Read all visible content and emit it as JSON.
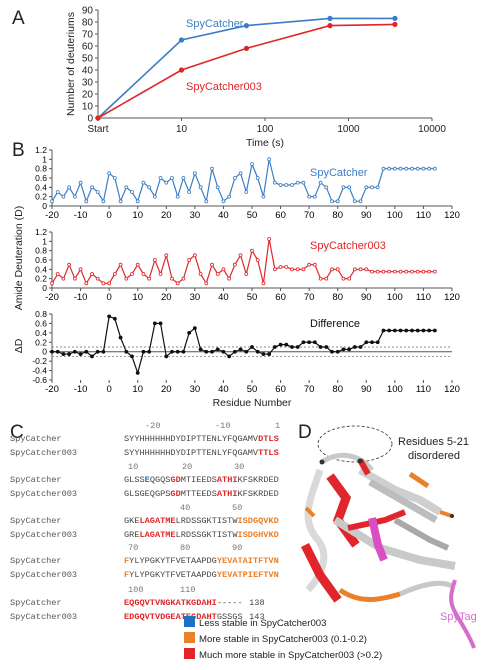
{
  "panels": {
    "a": "A",
    "b": "B",
    "c": "C",
    "d": "D"
  },
  "colors": {
    "spycatcher": "#3b7dc4",
    "spycatcher003": "#e0262a",
    "difference": "#111111",
    "less_stable": "#1f6fc2",
    "more_stable": "#e9802a",
    "much_more_stable": "#e0262a",
    "spytag": "#d46ec8"
  },
  "chart_data": [
    {
      "type": "line",
      "xscale": "log",
      "x_tick_labels": [
        "Start",
        "10",
        "100",
        "1000",
        "10000"
      ],
      "xlabel": "Time (s)",
      "ylabel": "Number of deuteriums",
      "ylim": [
        0,
        90
      ],
      "y_ticks": [
        "0",
        "10",
        "20",
        "30",
        "40",
        "50",
        "60",
        "70",
        "80",
        "90"
      ],
      "series": [
        {
          "name": "SpyCatcher",
          "color": "#3b7dc4",
          "values": [
            0,
            65,
            77,
            83,
            83
          ]
        },
        {
          "name": "SpyCatcher003",
          "color": "#e0262a",
          "values": [
            0,
            40,
            58,
            77,
            78
          ]
        }
      ]
    },
    {
      "type": "line",
      "name": "SpyCatcher",
      "label": "SpyCatcher",
      "color": "#3b7dc4",
      "ylim": [
        0,
        1.2
      ],
      "y_ticks": [
        "0",
        "0.2",
        "0.4",
        "0.6",
        "0.8",
        "1",
        "1.2"
      ],
      "x_ticks": [
        "-20",
        "-10",
        "0",
        "10",
        "20",
        "30",
        "40",
        "50",
        "60",
        "70",
        "80",
        "90",
        "100",
        "110",
        "120"
      ],
      "x": [
        -20,
        -18,
        -16,
        -14,
        -12,
        -10,
        -8,
        -6,
        -4,
        -2,
        0,
        2,
        4,
        6,
        8,
        10,
        12,
        14,
        16,
        18,
        20,
        22,
        24,
        26,
        28,
        30,
        32,
        34,
        36,
        38,
        40,
        42,
        44,
        46,
        48,
        50,
        52,
        54,
        56,
        58,
        60,
        62,
        64,
        66,
        68,
        70,
        72,
        74,
        76,
        78,
        80,
        82,
        84,
        86,
        88,
        90,
        92,
        94,
        96,
        98,
        100,
        102,
        104,
        106,
        108,
        110,
        112,
        114
      ],
      "values": [
        0.1,
        0.3,
        0.2,
        0.4,
        0.2,
        0.5,
        0.1,
        0.4,
        0.3,
        0.1,
        0.7,
        0.6,
        0.1,
        0.4,
        0.3,
        0.1,
        0.5,
        0.4,
        0.2,
        0.6,
        0.5,
        0.6,
        0.2,
        0.6,
        0.3,
        0.7,
        0.4,
        0.1,
        0.8,
        0.4,
        0.1,
        0.2,
        0.6,
        0.7,
        0.3,
        0.9,
        0.6,
        0.2,
        1.0,
        0.5,
        0.45,
        0.45,
        0.45,
        0.5,
        0.5,
        0.2,
        0.2,
        0.5,
        0.4,
        0.1,
        0.1,
        0.4,
        0.4,
        0.1,
        0.1,
        0.4,
        0.4,
        0.4,
        0.8,
        0.8,
        0.8,
        0.8,
        0.8,
        0.8,
        0.8,
        0.8,
        0.8,
        0.8
      ]
    },
    {
      "type": "line",
      "name": "SpyCatcher003",
      "label": "SpyCatcher003",
      "color": "#e0262a",
      "ylim": [
        0,
        1.2
      ],
      "y_ticks": [
        "0",
        "0.2",
        "0.4",
        "0.6",
        "0.8",
        "1",
        "1.2"
      ],
      "ylabel": "Amide Deuteration (D)",
      "x_ticks": [
        "-20",
        "-10",
        "0",
        "10",
        "20",
        "30",
        "40",
        "50",
        "60",
        "70",
        "80",
        "90",
        "100",
        "110",
        "120"
      ],
      "x": [
        -20,
        -18,
        -16,
        -14,
        -12,
        -10,
        -8,
        -6,
        -4,
        -2,
        0,
        2,
        4,
        6,
        8,
        10,
        12,
        14,
        16,
        18,
        20,
        22,
        24,
        26,
        28,
        30,
        32,
        34,
        36,
        38,
        40,
        42,
        44,
        46,
        48,
        50,
        52,
        54,
        56,
        58,
        60,
        62,
        64,
        66,
        68,
        70,
        72,
        74,
        76,
        78,
        80,
        82,
        84,
        86,
        88,
        90,
        92,
        94,
        96,
        98,
        100,
        102,
        104,
        106,
        108,
        110,
        112,
        114
      ],
      "values": [
        0.1,
        0.3,
        0.2,
        0.5,
        0.2,
        0.4,
        0.1,
        0.3,
        0.2,
        0.1,
        0.1,
        0.3,
        0.5,
        0.2,
        0.3,
        0.5,
        0.3,
        0.2,
        0.6,
        0.3,
        0.7,
        0.2,
        0.1,
        0.2,
        0.6,
        0.7,
        0.3,
        0.1,
        0.5,
        0.3,
        0.4,
        0.2,
        0.5,
        0.7,
        0.3,
        0.8,
        0.6,
        0.1,
        1.05,
        0.4,
        0.45,
        0.45,
        0.4,
        0.4,
        0.4,
        0.5,
        0.5,
        0.2,
        0.2,
        0.4,
        0.4,
        0.2,
        0.2,
        0.4,
        0.4,
        0.4,
        0.35,
        0.35,
        0.35,
        0.35,
        0.35,
        0.35,
        0.35,
        0.35,
        0.35,
        0.35,
        0.35,
        0.35
      ]
    },
    {
      "type": "line",
      "name": "Difference",
      "label": "Difference",
      "color": "#111111",
      "ylim": [
        -0.6,
        0.8
      ],
      "y_ticks": [
        "-0.6",
        "-0.4",
        "-0.2",
        "0",
        "0.2",
        "0.4",
        "0.6",
        "0.8"
      ],
      "ylabel": "ΔD",
      "xlabel": "Residue Number",
      "x_ticks": [
        "-20",
        "-10",
        "0",
        "10",
        "20",
        "30",
        "40",
        "50",
        "60",
        "70",
        "80",
        "90",
        "100",
        "110",
        "120"
      ],
      "reference_lines": [
        -0.1,
        0.1
      ],
      "x": [
        -20,
        -18,
        -16,
        -14,
        -12,
        -10,
        -8,
        -6,
        -4,
        -2,
        0,
        2,
        4,
        6,
        8,
        10,
        12,
        14,
        16,
        18,
        20,
        22,
        24,
        26,
        28,
        30,
        32,
        34,
        36,
        38,
        40,
        42,
        44,
        46,
        48,
        50,
        52,
        54,
        56,
        58,
        60,
        62,
        64,
        66,
        68,
        70,
        72,
        74,
        76,
        78,
        80,
        82,
        84,
        86,
        88,
        90,
        92,
        94,
        96,
        98,
        100,
        102,
        104,
        106,
        108,
        110,
        112,
        114
      ],
      "values": [
        0.0,
        0.0,
        -0.05,
        -0.05,
        0.0,
        -0.05,
        0.0,
        -0.1,
        0.0,
        0.0,
        0.75,
        0.7,
        0.3,
        0.0,
        -0.1,
        -0.45,
        0.0,
        0.0,
        0.6,
        0.6,
        -0.1,
        0.0,
        0.0,
        0.0,
        0.4,
        0.5,
        0.05,
        0.0,
        0.0,
        0.05,
        0.0,
        -0.1,
        0.0,
        0.05,
        0.0,
        0.1,
        0.0,
        -0.05,
        -0.05,
        0.1,
        0.15,
        0.15,
        0.1,
        0.1,
        0.2,
        0.2,
        0.2,
        0.1,
        0.1,
        0.0,
        0.0,
        0.05,
        0.05,
        0.1,
        0.1,
        0.2,
        0.2,
        0.2,
        0.45,
        0.45,
        0.45,
        0.45,
        0.45,
        0.45,
        0.45,
        0.45,
        0.45,
        0.45
      ]
    }
  ],
  "sequence": {
    "rows": [
      {
        "name": "SpyCatcher",
        "numbers": "",
        "text": "SYYHHHHHHDYDIPTTENLYFQGAMVDTLS"
      },
      {
        "name": "SpyCatcher003",
        "numbers": "",
        "text": "SYYHHHHHHDYDIPTTENLYFQGAMVTTLS"
      },
      {
        "name": "SpyCatcher",
        "numbers": "",
        "text": "GLSSEQGQSGDMTIEEDSATHIKFSKRDED"
      },
      {
        "name": "SpyCatcher003",
        "numbers": "",
        "text": "GLSGEQGPSGDMTTEEDSATHIKFSKRDED"
      },
      {
        "name": "SpyCatcher",
        "numbers": "",
        "text": "GKELAGATMELRDSSGKTISTWISDGQVKD"
      },
      {
        "name": "SpyCatcher003",
        "numbers": "",
        "text": "GRELAGATMELRDSSGKTISTWISDGHVKD"
      },
      {
        "name": "SpyCatcher",
        "numbers": "",
        "text": "FYLYPGKYTFVETAAPDGYEVATAITFTVN"
      },
      {
        "name": "SpyCatcher003",
        "numbers": "",
        "text": "FYLYPGKYTFVETAAPDGYEVATPIEFTVN"
      },
      {
        "name": "SpyCatcher",
        "numbers": "",
        "text": "EQGQVTVNGKATKGDAHI-----",
        "end": "138"
      },
      {
        "name": "SpyCatcher003",
        "numbers": "",
        "text": "EDGQVTVDGEATEGDAHTGSSGS",
        "end": "143"
      }
    ],
    "number_lines": [
      "-20",
      "-10",
      "1",
      "10",
      "20",
      "30",
      "40",
      "50",
      "60",
      "70",
      "80",
      "90",
      "100",
      "110"
    ]
  },
  "legend": [
    {
      "label": "Less stable in SpyCatcher003",
      "color": "#1f6fc2"
    },
    {
      "label": "More stable in SpyCatcher003 (0.1-0.2)",
      "color": "#e9802a"
    },
    {
      "label": "Much more stable in SpyCatcher003 (>0.2)",
      "color": "#e0262a"
    }
  ],
  "structure": {
    "annotation": "Residues 5-21",
    "annotation2": "disordered",
    "tag_label": "SpyTag"
  }
}
